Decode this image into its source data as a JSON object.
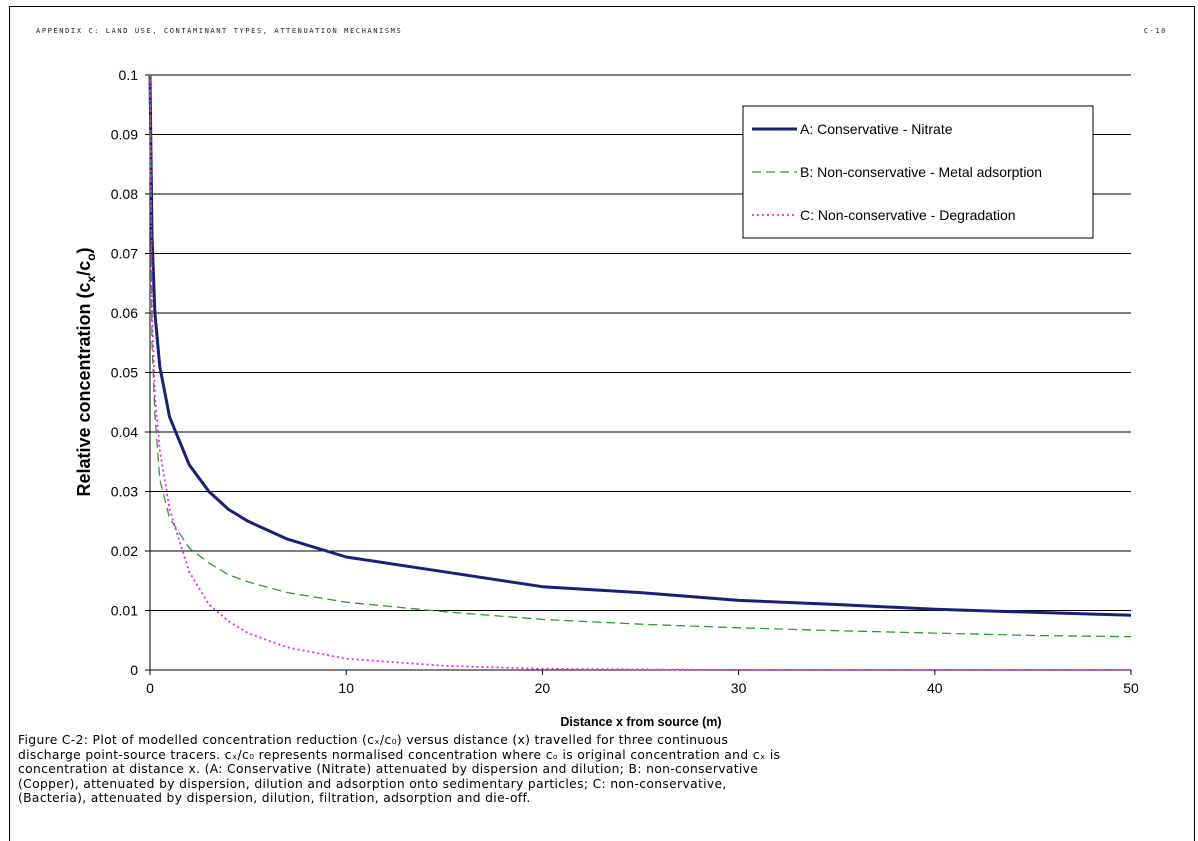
{
  "header": {
    "left": "APPENDIX C: LAND USE, CONTAMINANT TYPES, ATTENUATION MECHANISMS",
    "right": "C-10"
  },
  "colors": {
    "series_a": "#1a1f7a",
    "series_b": "#2e9a2e",
    "series_c": "#ee22ee",
    "gridline": "#000000"
  },
  "chart_data": {
    "type": "line",
    "title": "",
    "xlabel": "Distance x from source (m)",
    "ylabel": "Relative concentration (c",
    "ylabel_sub_x": "x",
    "ylabel_mid": "/c",
    "ylabel_sub_o": "o",
    "ylabel_end": ")",
    "xlim": [
      0,
      50
    ],
    "ylim": [
      0,
      0.1
    ],
    "x_ticks": [
      0,
      10,
      20,
      30,
      40,
      50
    ],
    "y_ticks": [
      0,
      0.01,
      0.02,
      0.03,
      0.04,
      0.05,
      0.06,
      0.07,
      0.08,
      0.09,
      0.1
    ],
    "x_tick_labels": [
      "0",
      "10",
      "20",
      "30",
      "40",
      "50"
    ],
    "y_tick_labels": [
      "0",
      "0.01",
      "0.02",
      "0.03",
      "0.04",
      "0.05",
      "0.06",
      "0.07",
      "0.08",
      "0.09",
      "0.1"
    ],
    "grid": "horizontal",
    "legend_position": "top-right",
    "series": [
      {
        "name": "A: Conservative - Nitrate",
        "style": "solid",
        "color": "#1a1f7a",
        "x": [
          0,
          0.1,
          0.25,
          0.5,
          1,
          2,
          3,
          4,
          5,
          7,
          10,
          15,
          20,
          25,
          30,
          35,
          40,
          45,
          50
        ],
        "y": [
          0.1,
          0.073,
          0.06,
          0.051,
          0.0425,
          0.0345,
          0.03,
          0.027,
          0.025,
          0.022,
          0.019,
          0.0165,
          0.014,
          0.013,
          0.0117,
          0.011,
          0.0102,
          0.0097,
          0.0092
        ]
      },
      {
        "name": "B: Non-conservative - Metal adsorption",
        "style": "dashed",
        "color": "#2e9a2e",
        "x": [
          0,
          0.1,
          0.25,
          0.5,
          1,
          2,
          3,
          4,
          5,
          7,
          10,
          15,
          20,
          25,
          30,
          35,
          40,
          45,
          50
        ],
        "y": [
          0.1,
          0.055,
          0.043,
          0.032,
          0.0255,
          0.0205,
          0.018,
          0.016,
          0.0148,
          0.013,
          0.0114,
          0.0098,
          0.0085,
          0.0077,
          0.0071,
          0.0066,
          0.0062,
          0.0058,
          0.0056
        ]
      },
      {
        "name": "C: Non-conservative - Degradation",
        "style": "dotted",
        "color": "#ee22ee",
        "x": [
          0,
          0.1,
          0.25,
          0.5,
          1,
          2,
          3,
          4,
          5,
          7,
          10,
          15,
          20,
          25,
          30,
          40,
          50
        ],
        "y": [
          0.1,
          0.06,
          0.046,
          0.037,
          0.027,
          0.0165,
          0.011,
          0.0082,
          0.0062,
          0.0038,
          0.0019,
          0.0007,
          0.0002,
          0.0001,
          0.0,
          0.0,
          0.0
        ]
      }
    ]
  },
  "caption": [
    "Figure C-2: Plot of modelled concentration reduction (cₓ/c₀) versus distance (x) travelled for three continuous",
    "discharge point-source tracers.  cₓ/c₀ represents normalised concentration where cₒ is original concentration and cₓ is",
    "concentration at distance x.  (A: Conservative (Nitrate) attenuated by dispersion and dilution;  B: non-conservative",
    "(Copper), attenuated by dispersion, dilution and adsorption onto sedimentary particles;  C: non-conservative,",
    "(Bacteria), attenuated by dispersion, dilution, filtration, adsorption and die-off."
  ]
}
